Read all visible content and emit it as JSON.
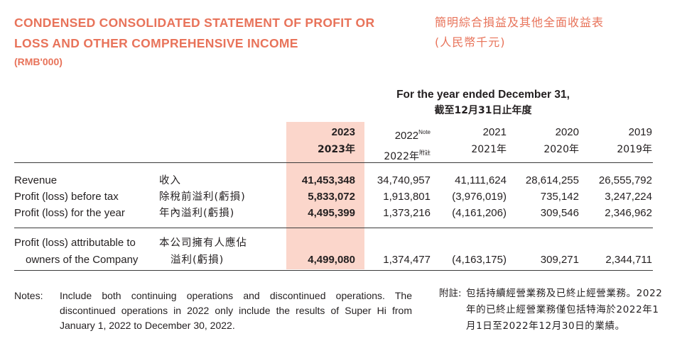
{
  "title": {
    "en_line1": "CONDENSED CONSOLIDATED STATEMENT OF PROFIT OR",
    "en_line2": "LOSS AND OTHER COMPREHENSIVE INCOME",
    "unit_en": "(RMB'000)",
    "zh": "簡明綜合損益及其他全面收益表",
    "unit_zh": "(人民幣千元)"
  },
  "period": {
    "en": "For the year ended December 31,",
    "zh": "截至12月31日止年度"
  },
  "years": [
    {
      "en": "2023",
      "zh": "2023年",
      "note": "",
      "note_zh": ""
    },
    {
      "en": "2022",
      "zh": "2022年",
      "note": "Note",
      "note_zh": "附註"
    },
    {
      "en": "2021",
      "zh": "2021年",
      "note": "",
      "note_zh": ""
    },
    {
      "en": "2020",
      "zh": "2020年",
      "note": "",
      "note_zh": ""
    },
    {
      "en": "2019",
      "zh": "2019年",
      "note": "",
      "note_zh": ""
    }
  ],
  "rows": [
    {
      "en": "Revenue",
      "zh": "收入",
      "values": [
        "41,453,348",
        "34,740,957",
        "41,111,624",
        "28,614,255",
        "26,555,792"
      ]
    },
    {
      "en": "Profit (loss) before tax",
      "zh": "除稅前溢利(虧損)",
      "values": [
        "5,833,072",
        "1,913,801",
        "(3,976,019)",
        "735,142",
        "3,247,224"
      ]
    },
    {
      "en": "Profit (loss) for the year",
      "zh": "年內溢利(虧損)",
      "values": [
        "4,495,399",
        "1,373,216",
        "(4,161,206)",
        "309,546",
        "2,346,962"
      ]
    }
  ],
  "attrib_row": {
    "en_line1": "Profit (loss) attributable to",
    "en_line2": "owners of the Company",
    "zh_line1": "本公司擁有人應佔",
    "zh_line2": "溢利(虧損)",
    "values": [
      "4,499,080",
      "1,374,477",
      "(4,163,175)",
      "309,271",
      "2,344,711"
    ]
  },
  "notes": {
    "label_en": "Notes:",
    "text_en": "Include both continuing operations and discontinued operations. The discontinued operations in 2022 only include the results of Super Hi from January 1, 2022 to December 30, 2022.",
    "label_zh": "附註:",
    "text_zh": "包括持續經營業務及已終止經營業務。2022年的已終止經營業務僅包括特海於2022年1月1日至2022年12月30日的業績。"
  },
  "colors": {
    "accent": "#e8735a",
    "highlight": "#fbd6cb",
    "text": "#231f20"
  }
}
